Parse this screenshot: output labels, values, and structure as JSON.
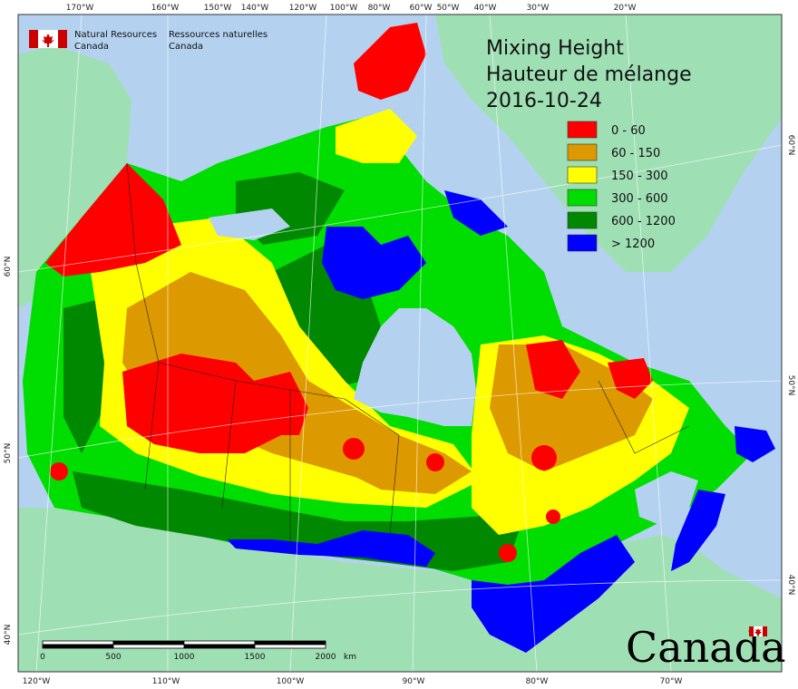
{
  "title": {
    "line1": "Mixing Height",
    "line2": "Hauteur de mélange",
    "date": "2016-10-24"
  },
  "agency": {
    "en_line1": "Natural Resources",
    "en_line2": "Canada",
    "fr_line1": "Ressources naturelles",
    "fr_line2": "Canada"
  },
  "wordmark": "Canada",
  "legend": [
    {
      "label": "0 - 60",
      "color": "#ff0000"
    },
    {
      "label": "60 - 150",
      "color": "#dd9900"
    },
    {
      "label": "150 - 300",
      "color": "#ffff00"
    },
    {
      "label": "300 - 600",
      "color": "#00dd00"
    },
    {
      "label": "600 - 1200",
      "color": "#008800"
    },
    {
      "label": "> 1200",
      "color": "#0000ff"
    }
  ],
  "top_ticks": [
    "170°W",
    "160°W",
    "150°W",
    "140°W",
    "120°W",
    "100°W",
    "80°W",
    "60°W",
    "50°W",
    "40°W",
    "30°W",
    "20°W"
  ],
  "bottom_ticks": [
    "120°W",
    "110°W",
    "100°W",
    "90°W",
    "80°W",
    "70°W"
  ],
  "left_ticks": [
    "60°N",
    "50°N",
    "40°N"
  ],
  "right_ticks": [
    "60°N",
    "50°N",
    "40°N"
  ],
  "scale": {
    "labels": [
      "0",
      "500",
      "1000",
      "1500",
      "2000"
    ],
    "unit": "km"
  },
  "colors": {
    "water": "#b4d2f0",
    "land_foreign": "#9fdfb4",
    "frame": "#333333"
  }
}
